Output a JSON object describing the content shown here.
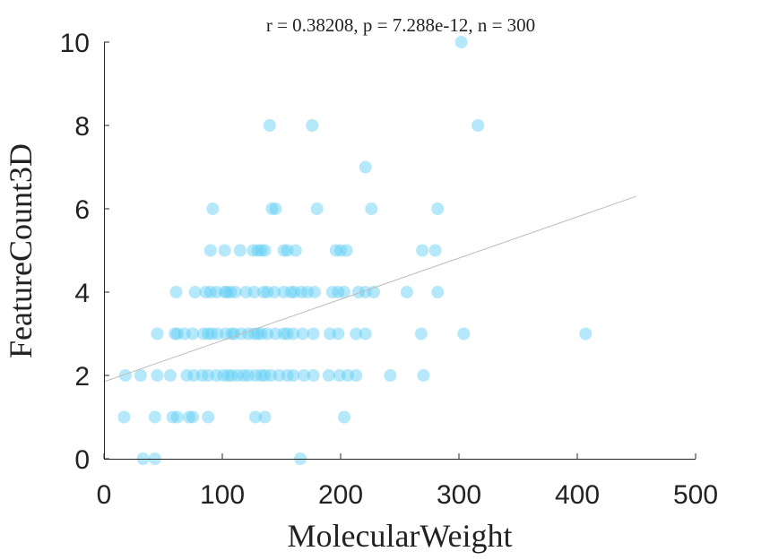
{
  "chart_data": {
    "type": "scatter",
    "title": "r = 0.38208, p = 7.288e-12, n = 300",
    "xlabel": "MolecularWeight",
    "ylabel": "FeatureCount3D",
    "xlim": [
      0,
      500
    ],
    "ylim": [
      0,
      10
    ],
    "xticks": [
      "0",
      "100",
      "200",
      "300",
      "400",
      "500"
    ],
    "yticks": [
      "0",
      "2",
      "4",
      "6",
      "8",
      "10"
    ],
    "grid": false,
    "point_color": "#5ccdf5",
    "trend_color": "#bdbdbd",
    "trendline": {
      "x": [
        0,
        450
      ],
      "y": [
        1.85,
        6.3
      ]
    },
    "points": [
      [
        302,
        10
      ],
      [
        140,
        8
      ],
      [
        176,
        8
      ],
      [
        316,
        8
      ],
      [
        221,
        7
      ],
      [
        92,
        6
      ],
      [
        142,
        6
      ],
      [
        145,
        6
      ],
      [
        180,
        6
      ],
      [
        226,
        6
      ],
      [
        282,
        6
      ],
      [
        90,
        5
      ],
      [
        102,
        5
      ],
      [
        115,
        5
      ],
      [
        126,
        5
      ],
      [
        130,
        5
      ],
      [
        133,
        5
      ],
      [
        136,
        5
      ],
      [
        152,
        5
      ],
      [
        155,
        5
      ],
      [
        162,
        5
      ],
      [
        196,
        5
      ],
      [
        200,
        5
      ],
      [
        205,
        5
      ],
      [
        269,
        5
      ],
      [
        280,
        5
      ],
      [
        61,
        4
      ],
      [
        77,
        4
      ],
      [
        86,
        4
      ],
      [
        90,
        4
      ],
      [
        95,
        4
      ],
      [
        102,
        4
      ],
      [
        104,
        4
      ],
      [
        107,
        4
      ],
      [
        111,
        4
      ],
      [
        120,
        4
      ],
      [
        127,
        4
      ],
      [
        135,
        4
      ],
      [
        138,
        4
      ],
      [
        144,
        4
      ],
      [
        152,
        4
      ],
      [
        158,
        4
      ],
      [
        161,
        4
      ],
      [
        167,
        4
      ],
      [
        172,
        4
      ],
      [
        178,
        4
      ],
      [
        193,
        4
      ],
      [
        198,
        4
      ],
      [
        203,
        4
      ],
      [
        215,
        4
      ],
      [
        221,
        4
      ],
      [
        228,
        4
      ],
      [
        256,
        4
      ],
      [
        282,
        4
      ],
      [
        45,
        3
      ],
      [
        60,
        3
      ],
      [
        62,
        3
      ],
      [
        68,
        3
      ],
      [
        75,
        3
      ],
      [
        84,
        3
      ],
      [
        88,
        3
      ],
      [
        91,
        3
      ],
      [
        96,
        3
      ],
      [
        103,
        3
      ],
      [
        108,
        3
      ],
      [
        110,
        3
      ],
      [
        116,
        3
      ],
      [
        122,
        3
      ],
      [
        127,
        3
      ],
      [
        130,
        3
      ],
      [
        133,
        3
      ],
      [
        138,
        3
      ],
      [
        145,
        3
      ],
      [
        152,
        3
      ],
      [
        155,
        3
      ],
      [
        160,
        3
      ],
      [
        168,
        3
      ],
      [
        177,
        3
      ],
      [
        191,
        3
      ],
      [
        198,
        3
      ],
      [
        213,
        3
      ],
      [
        221,
        3
      ],
      [
        268,
        3
      ],
      [
        304,
        3
      ],
      [
        407,
        3
      ],
      [
        18,
        2
      ],
      [
        31,
        2
      ],
      [
        45,
        2
      ],
      [
        56,
        2
      ],
      [
        70,
        2
      ],
      [
        76,
        2
      ],
      [
        83,
        2
      ],
      [
        88,
        2
      ],
      [
        95,
        2
      ],
      [
        101,
        2
      ],
      [
        105,
        2
      ],
      [
        108,
        2
      ],
      [
        113,
        2
      ],
      [
        118,
        2
      ],
      [
        122,
        2
      ],
      [
        128,
        2
      ],
      [
        133,
        2
      ],
      [
        136,
        2
      ],
      [
        141,
        2
      ],
      [
        148,
        2
      ],
      [
        155,
        2
      ],
      [
        160,
        2
      ],
      [
        169,
        2
      ],
      [
        177,
        2
      ],
      [
        190,
        2
      ],
      [
        199,
        2
      ],
      [
        206,
        2
      ],
      [
        213,
        2
      ],
      [
        242,
        2
      ],
      [
        270,
        2
      ],
      [
        17,
        1
      ],
      [
        43,
        1
      ],
      [
        58,
        1
      ],
      [
        62,
        1
      ],
      [
        72,
        1
      ],
      [
        75,
        1
      ],
      [
        88,
        1
      ],
      [
        128,
        1
      ],
      [
        136,
        1
      ],
      [
        203,
        1
      ],
      [
        33,
        0
      ],
      [
        43,
        0
      ],
      [
        166,
        0
      ]
    ]
  }
}
